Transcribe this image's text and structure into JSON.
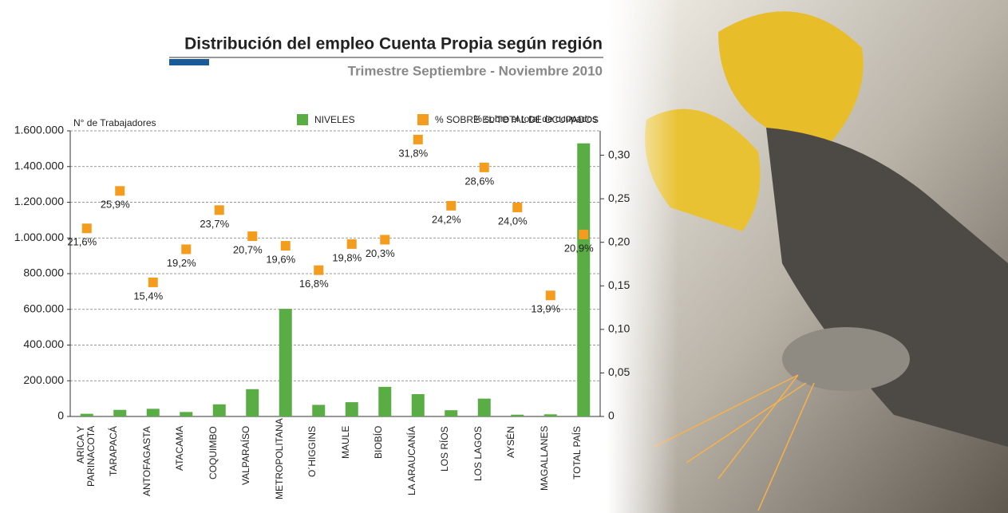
{
  "chart_data": {
    "type": "bar",
    "title": "Distribución del empleo Cuenta Propia según región",
    "subtitle": "Trimestre Septiembre - Noviembre 2010",
    "y_label": "N° de Trabajadores",
    "y2_label": "% sobre el total de ocupados",
    "categories": [
      "ARICA Y PARINACOTA",
      "TARAPACÁ",
      "ANTOFAGASTA",
      "ATACAMA",
      "COQUIMBO",
      "VALPARAÍSO",
      "METROPOLITANA",
      "O´HIGGINS",
      "MAULE",
      "BIOBÍO",
      "LA ARAUCANÍA",
      "LOS RÍOS",
      "LOS LAGOS",
      "AYSÉN",
      "MAGALLANES",
      "TOTAL PAÍS"
    ],
    "series": [
      {
        "name": "NIVELES",
        "type": "bar",
        "color": "#5aac44",
        "values": [
          15000,
          37000,
          43000,
          25000,
          68000,
          153000,
          603000,
          65000,
          80000,
          166000,
          125000,
          35000,
          100000,
          10000,
          12000,
          1530000
        ]
      },
      {
        "name": "% SOBRE EL TOTAL DE OCUPADOS",
        "type": "scatter",
        "axis": "y2",
        "color": "#f39c1e",
        "values": [
          0.216,
          0.259,
          0.154,
          0.192,
          0.237,
          0.207,
          0.196,
          0.168,
          0.198,
          0.203,
          0.318,
          0.242,
          0.286,
          0.24,
          0.139,
          0.209
        ],
        "value_labels": [
          "21,6%",
          "25,9%",
          "15,4%",
          "19,2%",
          "23,7%",
          "20,7%",
          "19,6%",
          "16,8%",
          "19,8%",
          "20,3%",
          "31,8%",
          "24,2%",
          "28,6%",
          "24,0%",
          "13,9%",
          "20,9%"
        ]
      }
    ],
    "ylim": [
      0,
      1600000
    ],
    "yticks": [
      0,
      {
        "value": 200000,
        "label": "200.000"
      },
      {
        "value": 400000,
        "label": "400.000"
      },
      {
        "value": 600000,
        "label": "600.000"
      },
      {
        "value": 800000,
        "label": "800.000"
      },
      {
        "value": 1000000,
        "label": "1.000.000"
      },
      {
        "value": 1200000,
        "label": "1.200.000"
      },
      {
        "value": 1400000,
        "label": "1.400.000"
      },
      {
        "value": 1600000,
        "label": "1.600.000"
      }
    ],
    "y2lim": [
      0,
      0.328
    ],
    "y2ticks": [
      0,
      {
        "value": 0.05,
        "label": "0,05"
      },
      {
        "value": 0.1,
        "label": "0,10"
      },
      {
        "value": 0.15,
        "label": "0,15"
      },
      {
        "value": 0.2,
        "label": "0,20"
      },
      {
        "value": 0.25,
        "label": "0,25"
      },
      {
        "value": 0.3,
        "label": "0,30"
      }
    ],
    "grid": true,
    "legend": "top-right"
  }
}
